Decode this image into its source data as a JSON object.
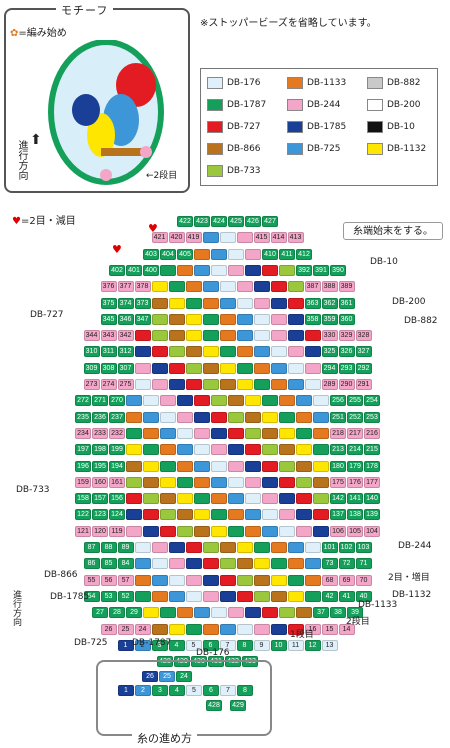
{
  "motif": {
    "title": "モチーフ",
    "start_mark": "=編み始め",
    "dir_label": "進行方向",
    "row2": "2段目"
  },
  "note": "※ストッパービーズを省略しています。",
  "heart_note": "=2目・減目",
  "thread_end": "糸端始末をする。",
  "legend": [
    {
      "code": "DB-176",
      "color": "#dff0fa"
    },
    {
      "code": "DB-1133",
      "color": "#e5791f"
    },
    {
      "code": "DB-882",
      "color": "#c9c9c9"
    },
    {
      "code": "DB-1787",
      "color": "#14a05a"
    },
    {
      "code": "DB-244",
      "color": "#f4a6c8"
    },
    {
      "code": "DB-200",
      "color": "#ffffff"
    },
    {
      "code": "DB-727",
      "color": "#e31b23"
    },
    {
      "code": "DB-1785",
      "color": "#1a3f96"
    },
    {
      "code": "DB-10",
      "color": "#111111"
    },
    {
      "code": "DB-866",
      "color": "#b8731c"
    },
    {
      "code": "DB-725",
      "color": "#3d96d8"
    },
    {
      "code": "DB-1132",
      "color": "#ffe600"
    },
    {
      "code": "DB-733",
      "color": "#9bc73c"
    }
  ],
  "callouts": {
    "db10": "DB-10",
    "db200": "DB-200",
    "db882": "DB-882",
    "db727": "DB-727",
    "db733": "DB-733",
    "db244": "DB-244",
    "db866": "DB-866",
    "db1132": "DB-1132",
    "db1785": "DB-1785",
    "db1133": "DB-1133",
    "db725": "DB-725",
    "db1787": "DB-1787",
    "db176": "DB-176",
    "row2inc": "2目・増目",
    "row2": "2段目",
    "row1": "1段目",
    "dir": "進行方向"
  },
  "rows": [
    {
      "n": [
        "422",
        "423",
        "424",
        "425",
        "426",
        "427"
      ],
      "c": "#14a05a"
    },
    {
      "n": [
        "421",
        "420",
        "419",
        "",
        "",
        "",
        "415",
        "414",
        "413"
      ]
    },
    {
      "n": [
        "403",
        "404",
        "405",
        "",
        "",
        "",
        "",
        "410",
        "411",
        "412"
      ]
    },
    {
      "n": [
        "402",
        "401",
        "400",
        "",
        "",
        "",
        "",
        "",
        "",
        "",
        "",
        "392",
        "391",
        "390"
      ]
    },
    {
      "n": [
        "376",
        "377",
        "378",
        "",
        "",
        "",
        "",
        "",
        "",
        "",
        "",
        "",
        "387",
        "388",
        "389"
      ]
    },
    {
      "n": [
        "375",
        "374",
        "373",
        "",
        "",
        "",
        "",
        "",
        "",
        "",
        "",
        "",
        "363",
        "362",
        "361"
      ]
    },
    {
      "n": [
        "345",
        "346",
        "347",
        "",
        "",
        "",
        "",
        "",
        "",
        "",
        "",
        "",
        "358",
        "359",
        "360"
      ]
    },
    {
      "n": [
        "344",
        "343",
        "342",
        "",
        "",
        "",
        "",
        "",
        "",
        "",
        "",
        "",
        "",
        "",
        "330",
        "329",
        "328"
      ]
    },
    {
      "n": [
        "310",
        "311",
        "312",
        "",
        "",
        "",
        "",
        "",
        "",
        "",
        "",
        "",
        "",
        "",
        "325",
        "326",
        "327"
      ]
    },
    {
      "n": [
        "309",
        "308",
        "307",
        "",
        "",
        "",
        "",
        "",
        "",
        "",
        "",
        "",
        "",
        "",
        "294",
        "293",
        "292"
      ]
    },
    {
      "n": [
        "273",
        "274",
        "275",
        "",
        "",
        "",
        "",
        "",
        "",
        "",
        "",
        "",
        "",
        "",
        "289",
        "290",
        "291"
      ]
    },
    {
      "n": [
        "272",
        "271",
        "270",
        "",
        "",
        "",
        "",
        "",
        "",
        "",
        "",
        "",
        "",
        "",
        "",
        "256",
        "255",
        "254"
      ]
    },
    {
      "n": [
        "235",
        "236",
        "237",
        "",
        "",
        "",
        "",
        "",
        "",
        "",
        "",
        "",
        "",
        "",
        "",
        "251",
        "252",
        "253"
      ]
    },
    {
      "n": [
        "234",
        "233",
        "232",
        "",
        "",
        "",
        "",
        "",
        "",
        "",
        "",
        "",
        "",
        "",
        "",
        "218",
        "217",
        "216"
      ]
    },
    {
      "n": [
        "197",
        "198",
        "199",
        "",
        "",
        "",
        "",
        "",
        "",
        "",
        "",
        "",
        "",
        "",
        "",
        "213",
        "214",
        "215"
      ]
    },
    {
      "n": [
        "196",
        "195",
        "194",
        "",
        "",
        "",
        "",
        "",
        "",
        "",
        "",
        "",
        "",
        "",
        "",
        "180",
        "179",
        "178"
      ]
    },
    {
      "n": [
        "159",
        "160",
        "161",
        "",
        "",
        "",
        "",
        "",
        "",
        "",
        "",
        "",
        "",
        "",
        "",
        "175",
        "176",
        "177"
      ]
    },
    {
      "n": [
        "158",
        "157",
        "156",
        "",
        "",
        "",
        "",
        "",
        "",
        "",
        "",
        "",
        "",
        "",
        "",
        "142",
        "141",
        "140"
      ]
    },
    {
      "n": [
        "122",
        "123",
        "124",
        "",
        "",
        "",
        "",
        "",
        "",
        "",
        "",
        "",
        "",
        "",
        "",
        "137",
        "138",
        "139"
      ]
    },
    {
      "n": [
        "121",
        "120",
        "119",
        "",
        "",
        "",
        "",
        "",
        "",
        "",
        "",
        "",
        "",
        "",
        "",
        "106",
        "105",
        "104"
      ]
    },
    {
      "n": [
        "87",
        "88",
        "89",
        "",
        "",
        "",
        "",
        "",
        "",
        "",
        "",
        "",
        "",
        "",
        "101",
        "102",
        "103"
      ]
    },
    {
      "n": [
        "86",
        "85",
        "84",
        "",
        "",
        "",
        "",
        "",
        "",
        "",
        "",
        "",
        "",
        "",
        "73",
        "72",
        "71"
      ]
    },
    {
      "n": [
        "55",
        "56",
        "57",
        "",
        "",
        "",
        "",
        "",
        "",
        "",
        "",
        "",
        "",
        "",
        "68",
        "69",
        "70"
      ]
    },
    {
      "n": [
        "54",
        "53",
        "52",
        "",
        "",
        "",
        "",
        "",
        "",
        "",
        "",
        "",
        "",
        "",
        "42",
        "41",
        "40"
      ]
    },
    {
      "n": [
        "27",
        "28",
        "29",
        "",
        "",
        "",
        "",
        "",
        "",
        "",
        "",
        "",
        "",
        "37",
        "38",
        "39"
      ]
    },
    {
      "n": [
        "26",
        "25",
        "24",
        "",
        "",
        "",
        "",
        "",
        "",
        "",
        "",
        "",
        "16",
        "15",
        "14"
      ]
    },
    {
      "n": [
        "1",
        "2",
        "3",
        "4",
        "5",
        "6",
        "7",
        "8",
        "9",
        "10",
        "11",
        "12",
        "13"
      ]
    },
    {
      "n": [
        "428",
        "429",
        "430",
        "431",
        "432",
        "433"
      ]
    }
  ],
  "thread": {
    "title": "糸の進め方",
    "top": [
      "26",
      "25",
      "24"
    ],
    "mid": [
      "1",
      "2",
      "3",
      "4",
      "5",
      "6",
      "7",
      "8"
    ],
    "bot": [
      "428",
      "429"
    ]
  }
}
